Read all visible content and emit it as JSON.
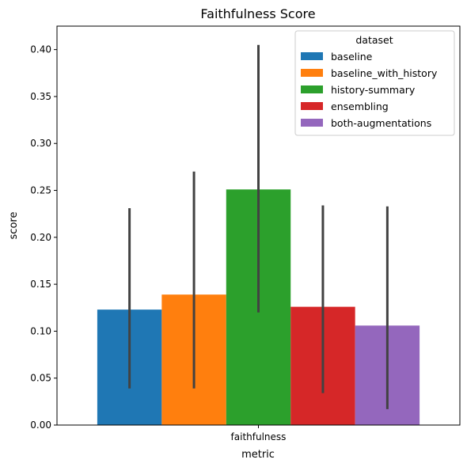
{
  "chart_data": {
    "type": "bar",
    "title": "Faithfulness Score",
    "xlabel": "metric",
    "ylabel": "score",
    "categories": [
      "faithfulness"
    ],
    "ylim": [
      0,
      0.425
    ],
    "yticks": [
      "0.00",
      "0.05",
      "0.10",
      "0.15",
      "0.20",
      "0.25",
      "0.30",
      "0.35",
      "0.40"
    ],
    "legend": {
      "title": "dataset",
      "position": "top-right"
    },
    "series": [
      {
        "name": "baseline",
        "color": "#1f77b4",
        "values": [
          0.123
        ],
        "ci": [
          [
            0.039,
            0.231
          ]
        ]
      },
      {
        "name": "baseline_with_history",
        "color": "#ff7f0e",
        "values": [
          0.139
        ],
        "ci": [
          [
            0.039,
            0.27
          ]
        ]
      },
      {
        "name": "history-summary",
        "color": "#2ca02c",
        "values": [
          0.251
        ],
        "ci": [
          [
            0.12,
            0.405
          ]
        ]
      },
      {
        "name": "ensembling",
        "color": "#d62728",
        "values": [
          0.126
        ],
        "ci": [
          [
            0.034,
            0.234
          ]
        ]
      },
      {
        "name": "both-augmentations",
        "color": "#9467bd",
        "values": [
          0.106
        ],
        "ci": [
          [
            0.017,
            0.233
          ]
        ]
      }
    ]
  }
}
